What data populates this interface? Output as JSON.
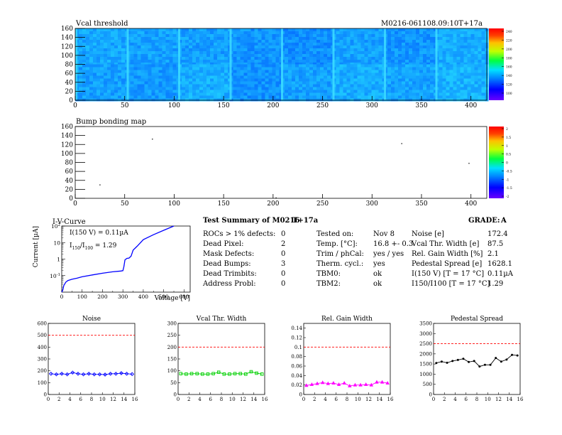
{
  "colors": {
    "hist_line": "#0000ff",
    "noise": "#0000ff",
    "vcal_width": "#00d000",
    "gain_width": "#ff00ff",
    "pedestal": "#000000",
    "limit_line": "#ff0000"
  },
  "map1": {
    "title": "Vcal threshold",
    "label": "M0216-061108.09:10T+17a",
    "x_ticks": [
      "0",
      "50",
      "100",
      "150",
      "200",
      "250",
      "300",
      "350",
      "400"
    ],
    "y_ticks": [
      "0",
      "20",
      "40",
      "60",
      "80",
      "100",
      "120",
      "140",
      "160"
    ],
    "palette_ticks": [
      "100",
      "120",
      "140",
      "160",
      "180",
      "200",
      "220",
      "240"
    ]
  },
  "map2": {
    "title": "Bump bonding map",
    "x_ticks": [
      "0",
      "50",
      "100",
      "150",
      "200",
      "250",
      "300",
      "350",
      "400"
    ],
    "y_ticks": [
      "0",
      "20",
      "40",
      "60",
      "80",
      "100",
      "120",
      "140",
      "160"
    ],
    "palette_ticks": [
      "-2",
      "-1.5",
      "-1",
      "-0.5",
      "0",
      "0.5",
      "1",
      "1.5",
      "2"
    ]
  },
  "iv": {
    "title": "I-V-Curve",
    "xlabel": "Voltage [V]",
    "ylabel": "Current [µA]",
    "x_ticks": [
      "0",
      "100",
      "200",
      "300",
      "400",
      "500",
      "600"
    ],
    "anno1": "I(150 V) = 0.11µA",
    "anno2_main": "I",
    "anno2_sub1": "150",
    "anno2_mid": "/I",
    "anno2_sub2": "100",
    "anno2_tail": " = 1.29"
  },
  "summary": {
    "title": "Test Summary of M0216",
    "tag": "T+17a",
    "grade_label": "GRADE:",
    "grade_value": "A",
    "left": [
      {
        "label": "ROCs > 1% defects:",
        "value": "0"
      },
      {
        "label": "Dead Pixel:",
        "value": "2"
      },
      {
        "label": "Mask Defects:",
        "value": "0"
      },
      {
        "label": "Dead Bumps:",
        "value": "3"
      },
      {
        "label": "Dead Trimbits:",
        "value": "0"
      },
      {
        "label": "Address Probl:",
        "value": "0"
      }
    ],
    "middle": [
      {
        "label": "Tested on:",
        "value": "Nov 8"
      },
      {
        "label": "Temp. [°C]:",
        "value": "16.8 +- 0.3"
      },
      {
        "label": "Trim / phCal:",
        "value": "yes / yes"
      },
      {
        "label": "Therm. cycl.:",
        "value": "yes"
      },
      {
        "label": "TBM0:",
        "value": "ok"
      },
      {
        "label": "TBM2:",
        "value": "ok"
      }
    ],
    "right": [
      {
        "label": "Noise [e]",
        "value": "172.4"
      },
      {
        "label": "Vcal Thr. Width [e]",
        "value": "87.5"
      },
      {
        "label": "Rel. Gain Width [%]",
        "value": "2.1"
      },
      {
        "label": "Pedestal Spread [e]",
        "value": "1628.1"
      },
      {
        "label": "I(150 V) [T = 17 °C]",
        "value": "0.11µA"
      },
      {
        "label": "I150/I100   [T = 17 °C]",
        "value": "1.29"
      }
    ]
  },
  "chart_data": [
    {
      "type": "heatmap",
      "title": "Vcal threshold",
      "xlim": [
        0,
        416
      ],
      "ylim": [
        0,
        160
      ],
      "zlim": [
        90,
        250
      ],
      "roc_grid": {
        "columns": 8,
        "rows": 2
      },
      "typical_value": 150
    },
    {
      "type": "heatmap",
      "title": "Bump bonding map",
      "xlim": [
        0,
        416
      ],
      "ylim": [
        0,
        160
      ],
      "zlim": [
        -2,
        2
      ],
      "points": [
        [
          78,
          132
        ],
        [
          330,
          122
        ],
        [
          398,
          78
        ],
        [
          25,
          30
        ],
        [
          203,
          1
        ]
      ]
    },
    {
      "type": "line",
      "title": "I-V-Curve",
      "xlabel": "Voltage [V]",
      "ylabel": "Current [µA]",
      "xlim": [
        0,
        630
      ],
      "ylim": [
        0.01,
        100
      ],
      "log_y": true,
      "x": [
        0,
        5,
        10,
        20,
        30,
        50,
        75,
        100,
        150,
        200,
        250,
        290,
        300,
        305,
        310,
        320,
        330,
        340,
        350,
        370,
        400,
        450,
        500,
        550
      ],
      "y": [
        0.007,
        0.013,
        0.025,
        0.04,
        0.05,
        0.06,
        0.07,
        0.085,
        0.11,
        0.14,
        0.17,
        0.19,
        0.2,
        0.35,
        0.9,
        1.1,
        1.15,
        1.5,
        3.5,
        6,
        15,
        30,
        55,
        100
      ]
    },
    {
      "type": "line",
      "title": "Noise",
      "xlim": [
        0,
        16
      ],
      "ylim": [
        0,
        600
      ],
      "limit": 500,
      "x": [
        0,
        1,
        2,
        3,
        4,
        5,
        6,
        7,
        8,
        9,
        10,
        11,
        12,
        13,
        14,
        15
      ],
      "y": [
        175,
        170,
        175,
        170,
        185,
        175,
        170,
        175,
        170,
        170,
        168,
        175,
        175,
        180,
        175,
        172
      ]
    },
    {
      "type": "line",
      "title": "Vcal Thr. Width",
      "xlim": [
        0,
        16
      ],
      "ylim": [
        0,
        300
      ],
      "limit": 200,
      "x": [
        0,
        1,
        2,
        3,
        4,
        5,
        6,
        7,
        8,
        9,
        10,
        11,
        12,
        13,
        14,
        15
      ],
      "y": [
        88,
        86,
        88,
        88,
        86,
        86,
        88,
        94,
        86,
        86,
        88,
        88,
        86,
        96,
        90,
        86
      ]
    },
    {
      "type": "line",
      "title": "Rel. Gain Width",
      "xlim": [
        0,
        16
      ],
      "ylim": [
        0,
        0.15
      ],
      "limit": 0.1,
      "x": [
        0,
        1,
        2,
        3,
        4,
        5,
        6,
        7,
        8,
        9,
        10,
        11,
        12,
        13,
        14,
        15
      ],
      "y": [
        0.019,
        0.021,
        0.023,
        0.025,
        0.023,
        0.024,
        0.021,
        0.024,
        0.018,
        0.02,
        0.02,
        0.021,
        0.02,
        0.026,
        0.026,
        0.024
      ]
    },
    {
      "type": "line",
      "title": "Pedestal Spread",
      "xlim": [
        0,
        16
      ],
      "ylim": [
        0,
        3500
      ],
      "limit": 2500,
      "x": [
        0,
        1,
        2,
        3,
        4,
        5,
        6,
        7,
        8,
        9,
        10,
        11,
        12,
        13,
        14,
        15
      ],
      "y": [
        1550,
        1620,
        1560,
        1650,
        1700,
        1760,
        1600,
        1650,
        1380,
        1460,
        1460,
        1800,
        1620,
        1720,
        1950,
        1920
      ]
    }
  ]
}
